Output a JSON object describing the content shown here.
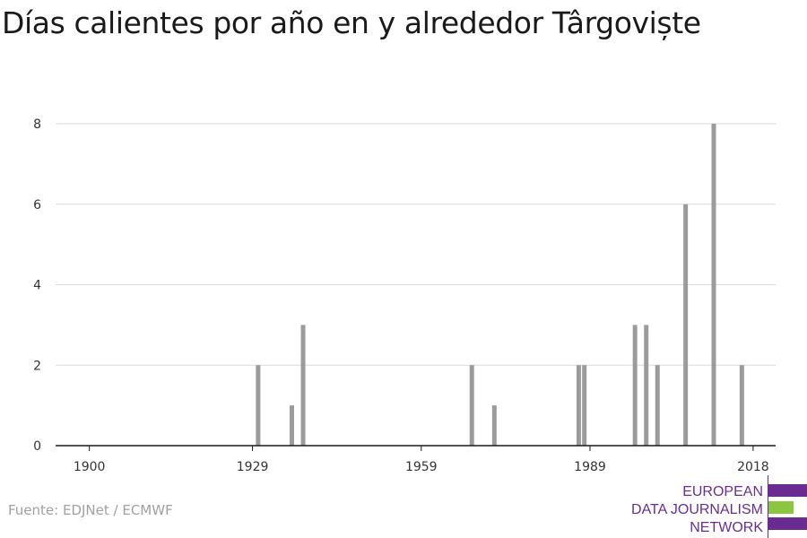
{
  "title": "Días calientes por año en y alrededor Târgoviște",
  "source": "Fuente: EDJNet / ECMWF",
  "logo": {
    "lines": [
      "EUROPEAN",
      "DATA JOURNALISM",
      "NETWORK"
    ],
    "colors": {
      "purple": "#6a2c91",
      "green": "#8cc63f"
    }
  },
  "colors": {
    "bar": "#9b9b9b",
    "grid": "#d9d9d9",
    "axis": "#1a1a1a",
    "title": "#1a1a1a",
    "source": "#a0a0a0"
  },
  "chart_data": {
    "type": "bar",
    "title": "Días calientes por año en y alrededor Târgoviște",
    "xlabel": "",
    "ylabel": "",
    "xlim": [
      1894,
      2022
    ],
    "ylim": [
      0,
      8
    ],
    "yticks": [
      0,
      2,
      4,
      6,
      8
    ],
    "xticks": [
      1900,
      1929,
      1959,
      1989,
      2018
    ],
    "grid": true,
    "legend": "none",
    "x": [
      1930,
      1936,
      1938,
      1968,
      1972,
      1987,
      1988,
      1997,
      1999,
      2001,
      2006,
      2011,
      2016
    ],
    "values": [
      2,
      1,
      3,
      2,
      1,
      2,
      2,
      3,
      3,
      2,
      6,
      8,
      2
    ]
  }
}
